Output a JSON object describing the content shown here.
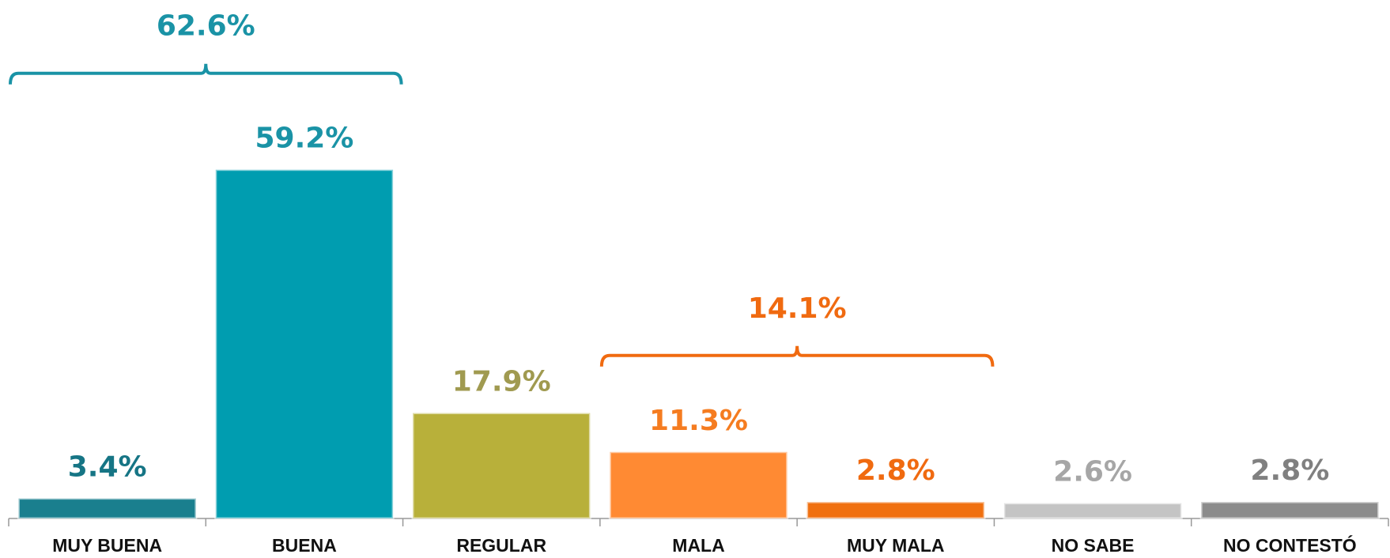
{
  "chart_data": {
    "type": "bar",
    "categories": [
      "MUY BUENA",
      "BUENA",
      "REGULAR",
      "MALA",
      "MUY MALA",
      "NO SABE",
      "NO CONTESTÓ"
    ],
    "values": [
      3.4,
      59.2,
      17.9,
      11.3,
      2.8,
      2.6,
      2.8
    ],
    "value_labels": [
      "3.4%",
      "59.2%",
      "17.9%",
      "11.3%",
      "2.8%",
      "2.6%",
      "2.8%"
    ],
    "colors": [
      "#1a7f8e",
      "#009db0",
      "#b8b03a",
      "#ff8a33",
      "#f07010",
      "#c4c4c4",
      "#8c8c8c"
    ],
    "label_colors": [
      "#167585",
      "#1a93a6",
      "#a09a50",
      "#f57c20",
      "#f06a10",
      "#a6a6a6",
      "#808080"
    ],
    "ylim": [
      0,
      88
    ],
    "brackets": [
      {
        "label": "62.6%",
        "value": 62.6,
        "span": [
          "MUY BUENA",
          "BUENA"
        ],
        "color": "#1a93a6"
      },
      {
        "label": "14.1%",
        "value": 14.1,
        "span": [
          "MALA",
          "MUY MALA"
        ],
        "color": "#f06a10"
      }
    ]
  }
}
